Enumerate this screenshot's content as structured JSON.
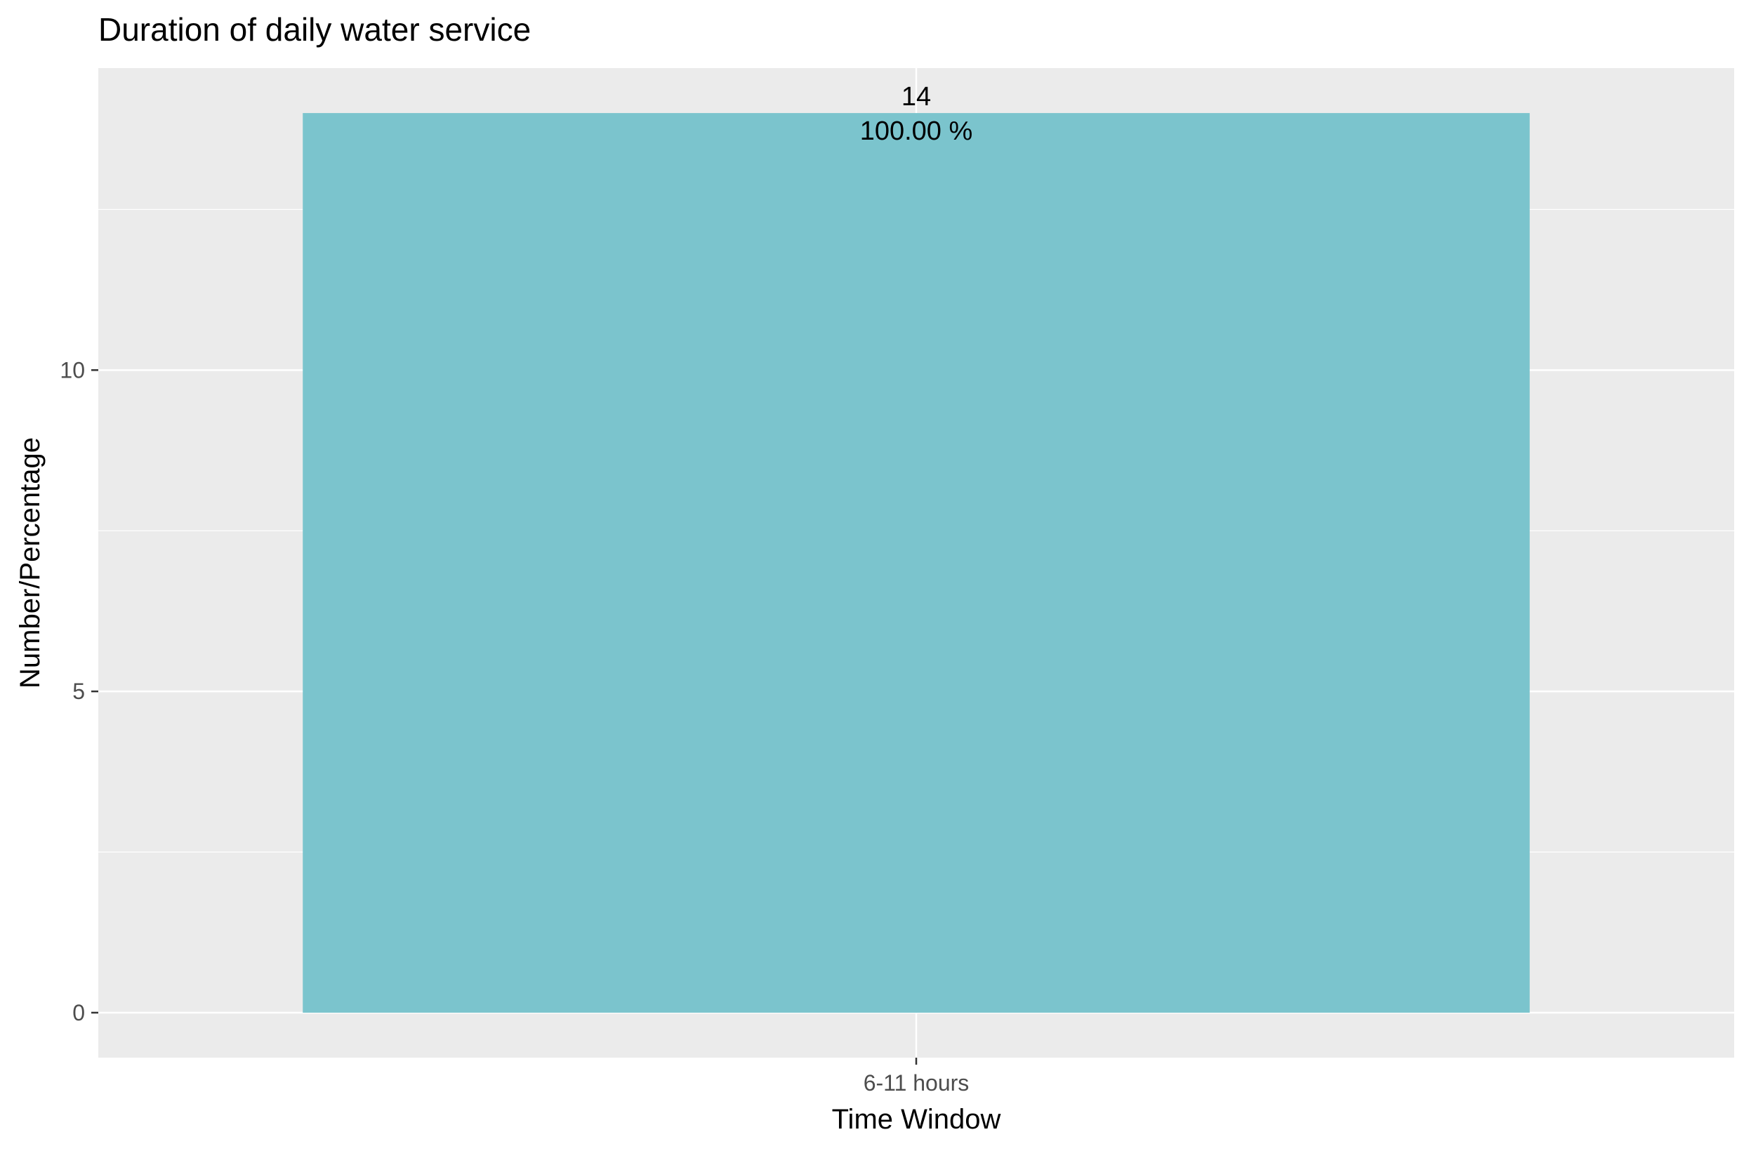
{
  "chart_data": {
    "type": "bar",
    "title": "Duration of daily water service",
    "xlabel": "Time Window",
    "ylabel": "Number/Percentage",
    "categories": [
      "6-11 hours"
    ],
    "values": [
      14
    ],
    "bar_labels": [
      {
        "count": "14",
        "percent": "100.00 %"
      }
    ],
    "yticks": [
      0,
      5,
      10
    ],
    "ylim": [
      -0.7,
      14.7
    ],
    "grid": true,
    "colors": {
      "bar": "#7BC4CD",
      "panel": "#EBEBEB",
      "grid": "#FFFFFF",
      "tick": "#333333"
    }
  }
}
